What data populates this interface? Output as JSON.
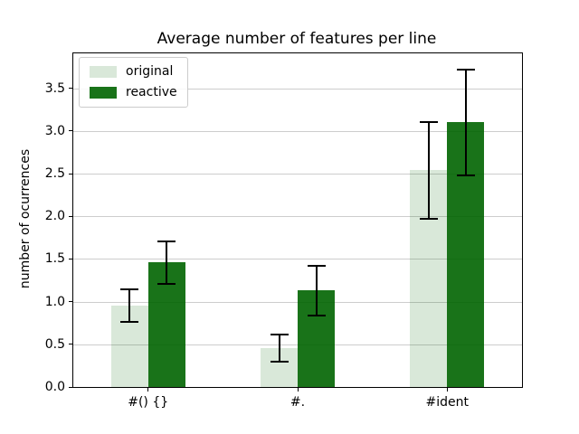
{
  "chart_data": {
    "type": "bar",
    "title": "Average number of features per line",
    "xlabel": "",
    "ylabel": "number of ocurrences",
    "categories": [
      "#() {}",
      "#.",
      "#ident"
    ],
    "series": [
      {
        "name": "original",
        "color": "#00640026",
        "values": [
          0.95,
          0.46,
          2.54
        ],
        "errors": [
          0.19,
          0.16,
          0.57
        ]
      },
      {
        "name": "reactive",
        "color": "#006400E6",
        "values": [
          1.46,
          1.13,
          3.1
        ],
        "errors": [
          0.25,
          0.29,
          0.62
        ]
      }
    ],
    "ylim": [
      0,
      3.91
    ],
    "yticks": [
      0.0,
      0.5,
      1.0,
      1.5,
      2.0,
      2.5,
      3.0,
      3.5
    ],
    "ytick_labels": [
      "0.0",
      "0.5",
      "1.0",
      "1.5",
      "2.0",
      "2.5",
      "3.0",
      "3.5"
    ],
    "grid": true,
    "legend_position": "upper left",
    "colors": {
      "error_bar": "#000000",
      "grid": "#cdcdcd",
      "spine": "#000000",
      "background": "#ffffff",
      "legend_border": "#cccccc"
    }
  }
}
